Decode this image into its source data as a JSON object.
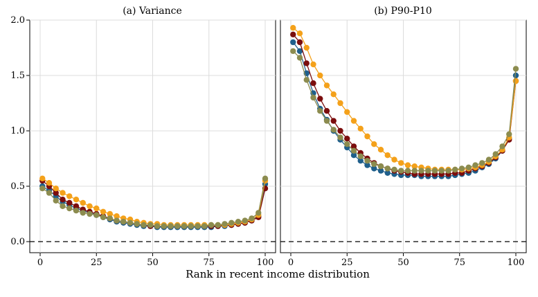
{
  "chart_data": {
    "type": "line",
    "xlabel": "Rank in recent income distribution",
    "x": [
      1,
      4,
      7,
      10,
      13,
      16,
      19,
      22,
      25,
      28,
      31,
      34,
      37,
      40,
      43,
      46,
      49,
      52,
      55,
      58,
      61,
      64,
      67,
      70,
      73,
      76,
      79,
      82,
      85,
      88,
      91,
      94,
      97,
      100
    ],
    "colors": [
      "#1f5f8b",
      "#7b0d0d",
      "#f4a11a",
      "#8c8c4f"
    ],
    "panels": [
      {
        "title": "(a) Variance",
        "ylim": [
          0,
          2.0
        ],
        "xlim": [
          0,
          100
        ],
        "yticks": [
          "0.0",
          "0.5",
          "1.0",
          "1.5",
          "2.0"
        ],
        "xticks": [
          "0",
          "25",
          "50",
          "75",
          "100"
        ],
        "series": [
          {
            "values": [
              0.5,
              0.46,
              0.41,
              0.36,
              0.33,
              0.3,
              0.28,
              0.26,
              0.24,
              0.22,
              0.2,
              0.18,
              0.17,
              0.16,
              0.15,
              0.14,
              0.14,
              0.13,
              0.13,
              0.13,
              0.13,
              0.13,
              0.13,
              0.13,
              0.13,
              0.13,
              0.14,
              0.14,
              0.15,
              0.16,
              0.17,
              0.19,
              0.23,
              0.52
            ]
          },
          {
            "values": [
              0.55,
              0.5,
              0.44,
              0.38,
              0.35,
              0.32,
              0.29,
              0.27,
              0.25,
              0.23,
              0.21,
              0.19,
              0.18,
              0.17,
              0.16,
              0.15,
              0.14,
              0.14,
              0.14,
              0.14,
              0.14,
              0.14,
              0.14,
              0.14,
              0.14,
              0.14,
              0.14,
              0.15,
              0.15,
              0.16,
              0.17,
              0.19,
              0.22,
              0.48
            ]
          },
          {
            "values": [
              0.57,
              0.53,
              0.48,
              0.44,
              0.41,
              0.38,
              0.35,
              0.32,
              0.3,
              0.27,
              0.25,
              0.23,
              0.21,
              0.2,
              0.18,
              0.17,
              0.16,
              0.16,
              0.15,
              0.15,
              0.15,
              0.15,
              0.15,
              0.15,
              0.15,
              0.15,
              0.15,
              0.15,
              0.16,
              0.17,
              0.18,
              0.2,
              0.24,
              0.55
            ]
          },
          {
            "values": [
              0.48,
              0.44,
              0.37,
              0.32,
              0.3,
              0.28,
              0.26,
              0.25,
              0.24,
              0.22,
              0.21,
              0.19,
              0.18,
              0.17,
              0.16,
              0.15,
              0.15,
              0.14,
              0.14,
              0.14,
              0.14,
              0.14,
              0.14,
              0.14,
              0.14,
              0.15,
              0.15,
              0.16,
              0.17,
              0.18,
              0.19,
              0.21,
              0.26,
              0.57
            ]
          }
        ]
      },
      {
        "title": "(b) P90-P10",
        "ylim": [
          0,
          2.0
        ],
        "xlim": [
          0,
          100
        ],
        "yticks": [],
        "xticks": [
          "0",
          "25",
          "50",
          "75",
          "100"
        ],
        "series": [
          {
            "values": [
              1.8,
              1.72,
              1.52,
              1.34,
              1.2,
              1.1,
              1.0,
              0.92,
              0.85,
              0.78,
              0.73,
              0.69,
              0.66,
              0.64,
              0.62,
              0.61,
              0.6,
              0.6,
              0.6,
              0.59,
              0.59,
              0.59,
              0.59,
              0.59,
              0.6,
              0.61,
              0.62,
              0.64,
              0.67,
              0.7,
              0.75,
              0.82,
              0.93,
              1.5
            ]
          },
          {
            "values": [
              1.87,
              1.8,
              1.61,
              1.43,
              1.29,
              1.18,
              1.09,
              1.0,
              0.93,
              0.86,
              0.8,
              0.75,
              0.71,
              0.68,
              0.66,
              0.64,
              0.63,
              0.62,
              0.61,
              0.61,
              0.61,
              0.61,
              0.61,
              0.61,
              0.62,
              0.62,
              0.64,
              0.66,
              0.68,
              0.71,
              0.76,
              0.82,
              0.92,
              1.45
            ]
          },
          {
            "values": [
              1.93,
              1.88,
              1.75,
              1.6,
              1.5,
              1.41,
              1.33,
              1.25,
              1.17,
              1.09,
              1.02,
              0.95,
              0.88,
              0.83,
              0.78,
              0.74,
              0.71,
              0.69,
              0.68,
              0.67,
              0.66,
              0.65,
              0.65,
              0.65,
              0.65,
              0.65,
              0.66,
              0.67,
              0.69,
              0.72,
              0.77,
              0.83,
              0.94,
              1.45
            ]
          },
          {
            "values": [
              1.72,
              1.66,
              1.46,
              1.3,
              1.18,
              1.09,
              1.01,
              0.94,
              0.88,
              0.82,
              0.77,
              0.73,
              0.7,
              0.68,
              0.66,
              0.65,
              0.64,
              0.64,
              0.64,
              0.64,
              0.64,
              0.64,
              0.64,
              0.64,
              0.65,
              0.66,
              0.67,
              0.69,
              0.71,
              0.74,
              0.79,
              0.86,
              0.97,
              1.56
            ]
          }
        ]
      }
    ]
  }
}
